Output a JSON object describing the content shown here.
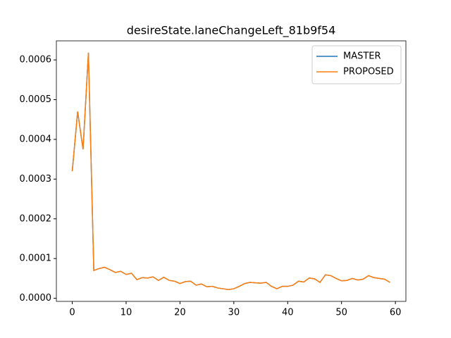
{
  "chart_data": {
    "type": "line",
    "title": "desireState.laneChangeLeft_81b9f54",
    "x": [
      0,
      1,
      2,
      3,
      4,
      5,
      6,
      7,
      8,
      9,
      10,
      11,
      12,
      13,
      14,
      15,
      16,
      17,
      18,
      19,
      20,
      21,
      22,
      23,
      24,
      25,
      26,
      27,
      28,
      29,
      30,
      31,
      32,
      33,
      34,
      35,
      36,
      37,
      38,
      39,
      40,
      41,
      42,
      43,
      44,
      45,
      46,
      47,
      48,
      49,
      50,
      51,
      52,
      53,
      54,
      55,
      56,
      57,
      58,
      59
    ],
    "series": [
      {
        "name": "MASTER",
        "color": "#1f77b4",
        "values": [
          0.00032,
          0.00047,
          0.000375,
          0.000618,
          7e-05,
          7.5e-05,
          7.8e-05,
          7.2e-05,
          6.5e-05,
          6.8e-05,
          6e-05,
          6.3e-05,
          4.7e-05,
          5.2e-05,
          5.1e-05,
          5.4e-05,
          4.5e-05,
          5.3e-05,
          4.5e-05,
          4.3e-05,
          3.7e-05,
          4.2e-05,
          4.3e-05,
          3.3e-05,
          3.6e-05,
          2.9e-05,
          3e-05,
          2.6e-05,
          2.4e-05,
          2.2e-05,
          2.4e-05,
          3e-05,
          3.7e-05,
          4e-05,
          3.9e-05,
          3.8e-05,
          4e-05,
          3e-05,
          2.4e-05,
          3e-05,
          3e-05,
          3.3e-05,
          4.3e-05,
          4.1e-05,
          5.1e-05,
          4.9e-05,
          4e-05,
          5.9e-05,
          5.7e-05,
          5e-05,
          4.4e-05,
          4.5e-05,
          5e-05,
          4.6e-05,
          4.8e-05,
          5.7e-05,
          5.2e-05,
          5e-05,
          4.8e-05,
          4e-05
        ]
      },
      {
        "name": "PROPOSED",
        "color": "#ff7f0e",
        "values": [
          0.00032,
          0.00047,
          0.000375,
          0.000618,
          7e-05,
          7.5e-05,
          7.8e-05,
          7.2e-05,
          6.5e-05,
          6.8e-05,
          6e-05,
          6.3e-05,
          4.7e-05,
          5.2e-05,
          5.1e-05,
          5.4e-05,
          4.5e-05,
          5.3e-05,
          4.5e-05,
          4.3e-05,
          3.7e-05,
          4.2e-05,
          4.3e-05,
          3.3e-05,
          3.6e-05,
          2.9e-05,
          3e-05,
          2.6e-05,
          2.4e-05,
          2.2e-05,
          2.4e-05,
          3e-05,
          3.7e-05,
          4e-05,
          3.9e-05,
          3.8e-05,
          4e-05,
          3e-05,
          2.4e-05,
          3e-05,
          3e-05,
          3.3e-05,
          4.3e-05,
          4.1e-05,
          5.1e-05,
          4.9e-05,
          4e-05,
          5.9e-05,
          5.7e-05,
          5e-05,
          4.4e-05,
          4.5e-05,
          5e-05,
          4.6e-05,
          4.8e-05,
          5.7e-05,
          5.2e-05,
          5e-05,
          4.8e-05,
          4e-05
        ]
      }
    ],
    "xlim": [
      -2.95,
      61.95
    ],
    "xticks": [
      0,
      10,
      20,
      30,
      40,
      50,
      60
    ],
    "ylim": [
      -7.8e-06,
      0.000648
    ],
    "yticks": [
      {
        "value": 0,
        "label": "0.0000"
      },
      {
        "value": 0.0001,
        "label": "0.0001"
      },
      {
        "value": 0.0002,
        "label": "0.0002"
      },
      {
        "value": 0.0003,
        "label": "0.0003"
      },
      {
        "value": 0.0004,
        "label": "0.0004"
      },
      {
        "value": 0.0005,
        "label": "0.0005"
      },
      {
        "value": 0.0006,
        "label": "0.0006"
      }
    ],
    "legend": "upper right"
  }
}
